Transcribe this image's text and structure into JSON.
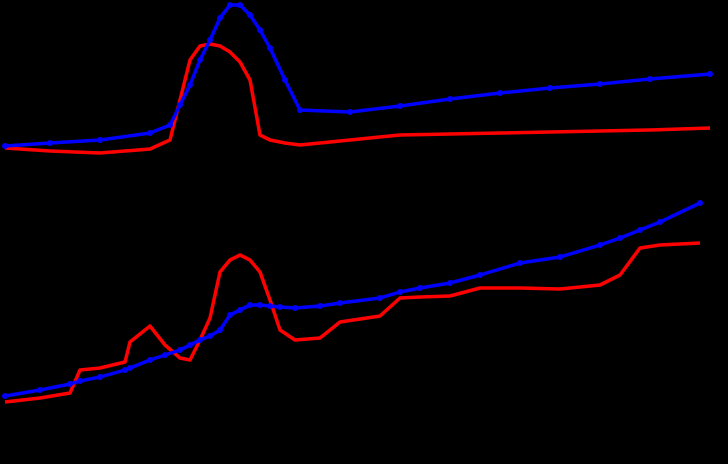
{
  "chart_data": [
    {
      "type": "line",
      "x": [
        5,
        50,
        100,
        150,
        170,
        180,
        190,
        200,
        210,
        220,
        230,
        240,
        250,
        260,
        270,
        285,
        300,
        350,
        400,
        450,
        500,
        550,
        600,
        650,
        710
      ],
      "xlim": [
        0,
        728
      ],
      "ylim": [
        0,
        160
      ],
      "series": [
        {
          "color": "#ff0000",
          "marker": false,
          "values": [
            12,
            9,
            7,
            11,
            20,
            60,
            100,
            114,
            116,
            114,
            108,
            98,
            80,
            25,
            20,
            17,
            15,
            20,
            25,
            26,
            27,
            28,
            29,
            30,
            32
          ]
        },
        {
          "color": "#0000ff",
          "marker": true,
          "values": [
            14,
            17,
            20,
            27,
            35,
            55,
            75,
            100,
            120,
            142,
            155,
            155,
            145,
            130,
            112,
            80,
            50,
            48,
            54,
            61,
            67,
            72,
            76,
            81,
            86
          ]
        }
      ]
    },
    {
      "type": "line",
      "x": [
        5,
        40,
        70,
        80,
        100,
        125,
        130,
        150,
        165,
        180,
        190,
        200,
        210,
        220,
        230,
        240,
        250,
        260,
        270,
        280,
        295,
        320,
        340,
        380,
        400,
        420,
        450,
        480,
        520,
        560,
        600,
        620,
        640,
        660,
        700
      ],
      "xlim": [
        0,
        728
      ],
      "ylim": [
        0,
        210
      ],
      "series": [
        {
          "color": "#ff0000",
          "marker": false,
          "values": [
            8,
            12,
            17,
            40,
            42,
            48,
            68,
            84,
            65,
            52,
            50,
            70,
            92,
            138,
            150,
            155,
            150,
            138,
            110,
            80,
            70,
            72,
            88,
            94,
            112,
            113,
            114,
            122,
            122,
            121,
            125,
            135,
            162,
            165,
            167
          ]
        },
        {
          "color": "#0000ff",
          "marker": true,
          "values": [
            14,
            20,
            26,
            29,
            33,
            40,
            42,
            50,
            55,
            60,
            65,
            70,
            74,
            80,
            95,
            100,
            105,
            105,
            104,
            103,
            102,
            104,
            107,
            112,
            118,
            122,
            127,
            135,
            147,
            153,
            165,
            172,
            180,
            188,
            207
          ]
        }
      ]
    }
  ]
}
